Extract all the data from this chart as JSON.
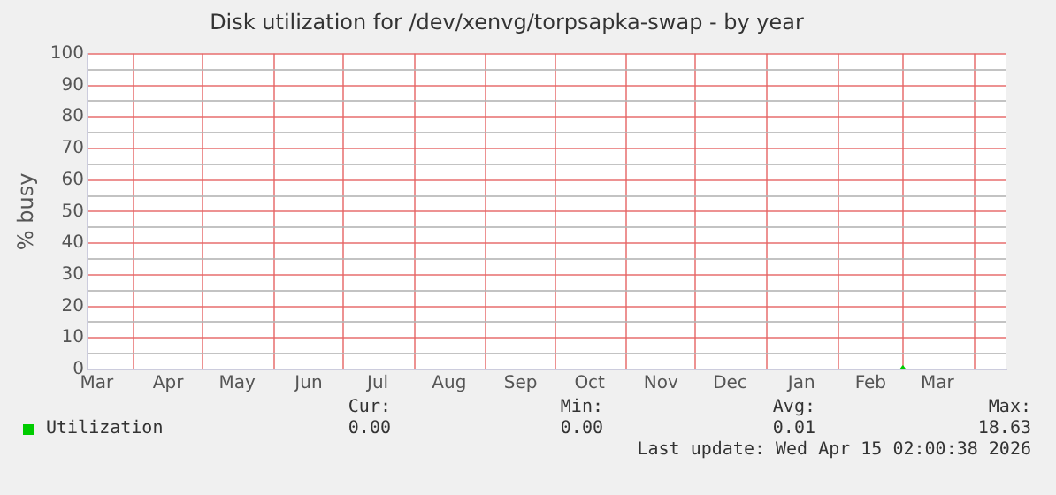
{
  "chart_data": {
    "type": "line",
    "title": "Disk utilization for /dev/xenvg/torpsapka-swap - by year",
    "ylabel": "% busy",
    "x": [
      "2025-03-12",
      "2026-02-28",
      "2026-03-01",
      "2026-03-02",
      "2026-04-15"
    ],
    "series": [
      {
        "name": "Utilization",
        "color": "#00cc00",
        "values": [
          0,
          0,
          1,
          0,
          0
        ]
      }
    ],
    "xlim": [
      "2025-03-12",
      "2026-04-15"
    ],
    "xticks": [
      {
        "value": "2025-03-16",
        "label": "Mar"
      },
      {
        "value": "2025-04-01",
        "label": null
      },
      {
        "value": "2025-04-16",
        "label": "Apr"
      },
      {
        "value": "2025-05-01",
        "label": null
      },
      {
        "value": "2025-05-16",
        "label": "May"
      },
      {
        "value": "2025-06-01",
        "label": null
      },
      {
        "value": "2025-06-16",
        "label": "Jun"
      },
      {
        "value": "2025-07-01",
        "label": null
      },
      {
        "value": "2025-07-16",
        "label": "Jul"
      },
      {
        "value": "2025-08-01",
        "label": null
      },
      {
        "value": "2025-08-16",
        "label": "Aug"
      },
      {
        "value": "2025-09-01",
        "label": null
      },
      {
        "value": "2025-09-16",
        "label": "Sep"
      },
      {
        "value": "2025-10-01",
        "label": null
      },
      {
        "value": "2025-10-16",
        "label": "Oct"
      },
      {
        "value": "2025-11-01",
        "label": null
      },
      {
        "value": "2025-11-16",
        "label": "Nov"
      },
      {
        "value": "2025-12-01",
        "label": null
      },
      {
        "value": "2025-12-16",
        "label": "Dec"
      },
      {
        "value": "2026-01-01",
        "label": null
      },
      {
        "value": "2026-01-16",
        "label": "Jan"
      },
      {
        "value": "2026-02-01",
        "label": null
      },
      {
        "value": "2026-02-15",
        "label": "Feb"
      },
      {
        "value": "2026-03-01",
        "label": null
      },
      {
        "value": "2026-03-16",
        "label": "Mar"
      },
      {
        "value": "2026-04-01",
        "label": null
      }
    ],
    "ylim": [
      0,
      100
    ],
    "yticks": [
      0,
      {
        "value": 5,
        "label": null
      },
      10,
      {
        "value": 15,
        "label": null
      },
      20,
      {
        "value": 25,
        "label": null
      },
      30,
      {
        "value": 35,
        "label": null
      },
      40,
      {
        "value": 45,
        "label": null
      },
      50,
      {
        "value": 55,
        "label": null
      },
      60,
      {
        "value": 65,
        "label": null
      },
      70,
      {
        "value": 75,
        "label": null
      },
      80,
      {
        "value": 85,
        "label": null
      },
      90,
      {
        "value": 95,
        "label": null
      },
      100
    ],
    "grid": true,
    "legend": "bottom left",
    "marker": "none",
    "line_style": "solid",
    "annotations": [
      "Cur:",
      "Min:",
      "Avg:",
      "Max:",
      "0.00",
      "0.00",
      "0.01",
      "18.63",
      "Last update: Wed Apr 15 02:00:38 2026"
    ]
  }
}
